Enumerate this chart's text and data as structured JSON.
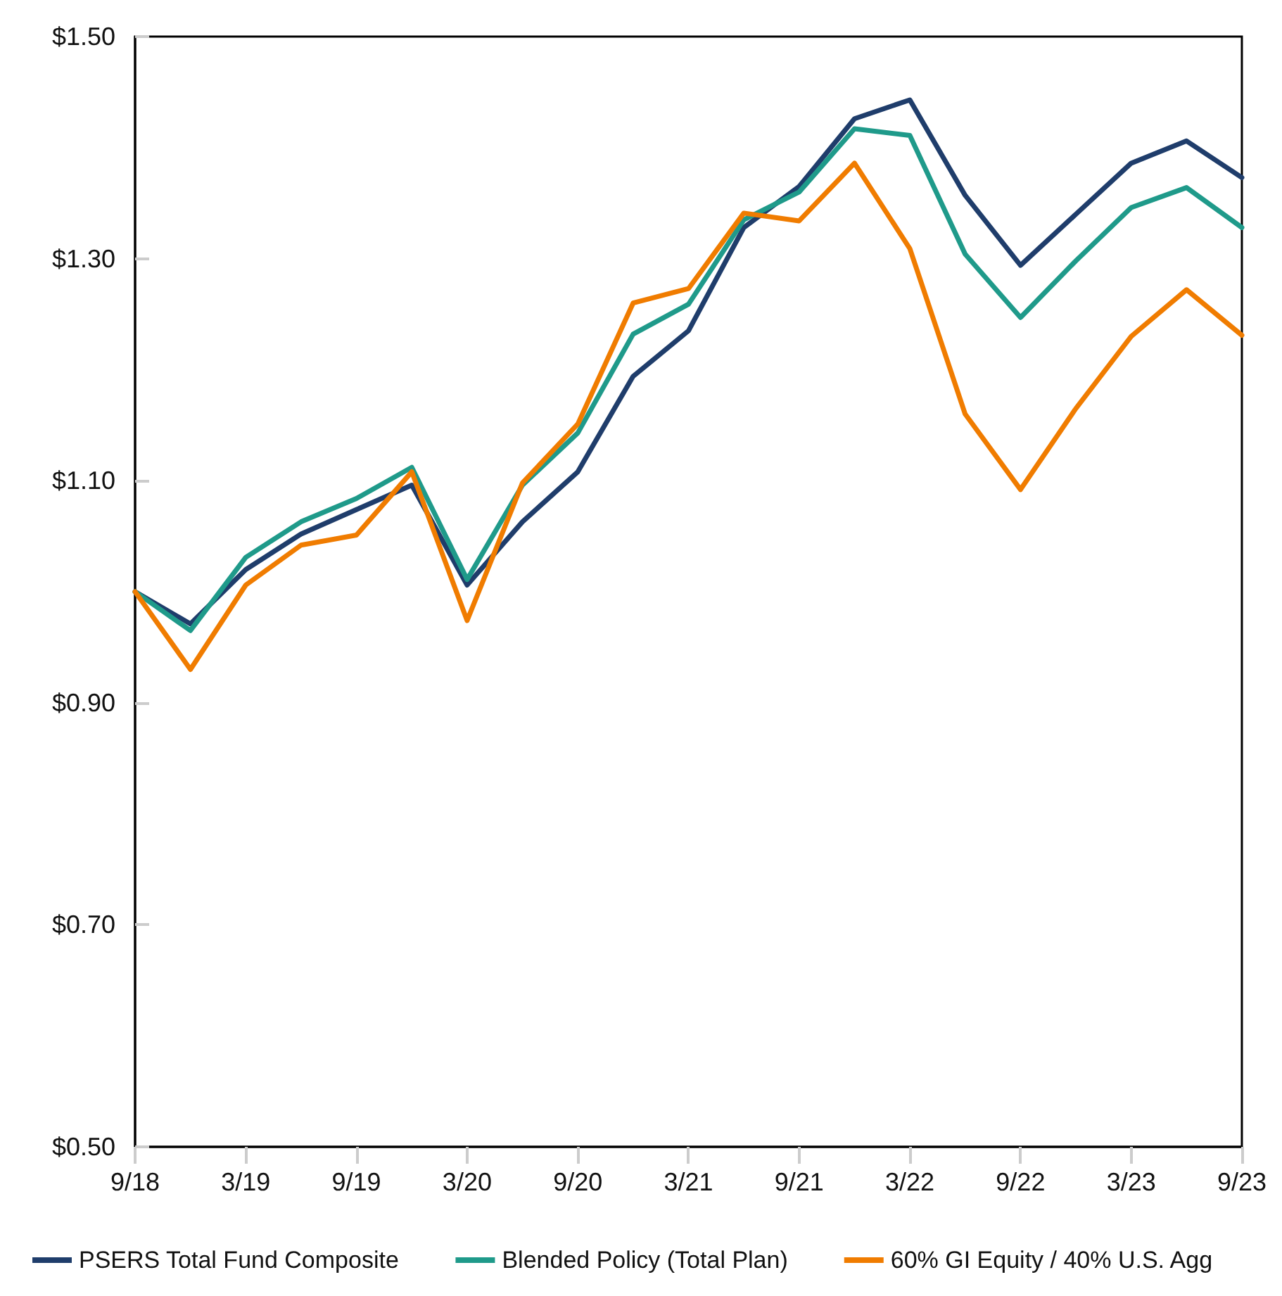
{
  "chart_data": {
    "type": "line",
    "categories": [
      "9/18",
      null,
      "3/19",
      null,
      "9/19",
      null,
      "3/20",
      null,
      "9/20",
      null,
      "3/21",
      null,
      "9/21",
      null,
      "3/22",
      null,
      "9/22",
      null,
      "3/23",
      null,
      "9/23"
    ],
    "series": [
      {
        "name": "PSERS Total Fund Composite",
        "color": "#1f3d6b",
        "values": [
          1.0,
          0.971,
          1.02,
          1.052,
          1.074,
          1.096,
          1.006,
          1.063,
          1.108,
          1.194,
          1.235,
          1.328,
          1.365,
          1.426,
          1.443,
          1.357,
          1.294,
          1.34,
          1.386,
          1.406,
          1.373
        ]
      },
      {
        "name": "Blended Policy (Total Plan)",
        "color": "#1f9a8a",
        "values": [
          1.0,
          0.965,
          1.031,
          1.063,
          1.084,
          1.112,
          1.011,
          1.096,
          1.143,
          1.232,
          1.259,
          1.335,
          1.36,
          1.417,
          1.411,
          1.304,
          1.247,
          1.298,
          1.346,
          1.364,
          1.328
        ]
      },
      {
        "name": "60% GI Equity / 40% U.S. Agg",
        "color": "#f07c00",
        "values": [
          1.0,
          0.93,
          1.006,
          1.042,
          1.051,
          1.108,
          0.974,
          1.098,
          1.151,
          1.26,
          1.273,
          1.341,
          1.334,
          1.386,
          1.309,
          1.16,
          1.092,
          1.165,
          1.23,
          1.272,
          1.231
        ]
      }
    ],
    "ylim": [
      0.5,
      1.5
    ],
    "yticks": [
      {
        "value": 0.5,
        "label": "$0.50"
      },
      {
        "value": 0.7,
        "label": "$0.70"
      },
      {
        "value": 0.9,
        "label": "$0.90"
      },
      {
        "value": 1.1,
        "label": "$1.10"
      },
      {
        "value": 1.3,
        "label": "$1.30"
      },
      {
        "value": 1.5,
        "label": "$1.50"
      }
    ],
    "grid": false,
    "legend": "bottom",
    "marker": "none",
    "line_style": "solid"
  }
}
